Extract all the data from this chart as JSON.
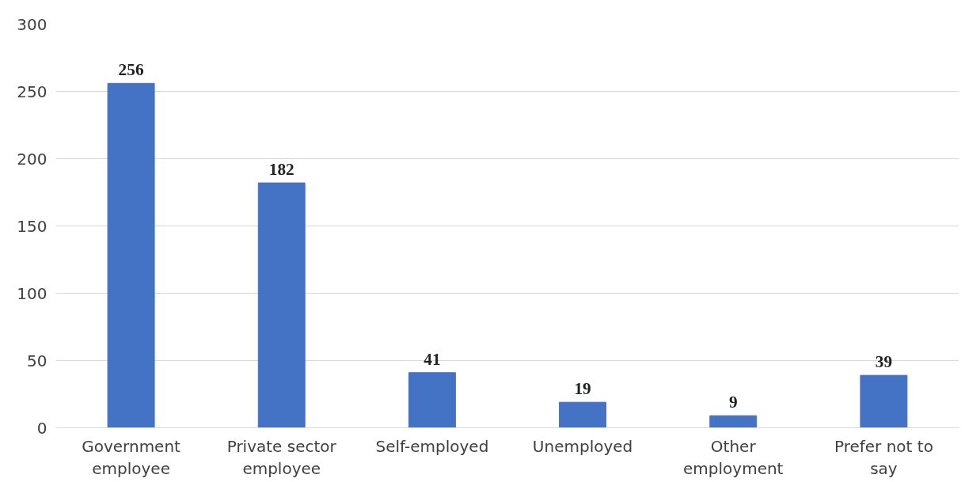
{
  "chart_data": {
    "type": "bar",
    "categories": [
      "Government employee",
      "Private sector employee",
      "Self-employed",
      "Unemployed",
      "Other employment",
      "Prefer not to say"
    ],
    "values": [
      256,
      182,
      41,
      19,
      9,
      39
    ],
    "color": "#4472c4",
    "ylim": [
      0,
      300
    ],
    "yticks": [
      0,
      50,
      100,
      150,
      200,
      250,
      300
    ],
    "grid": "y",
    "data_labels": true
  }
}
